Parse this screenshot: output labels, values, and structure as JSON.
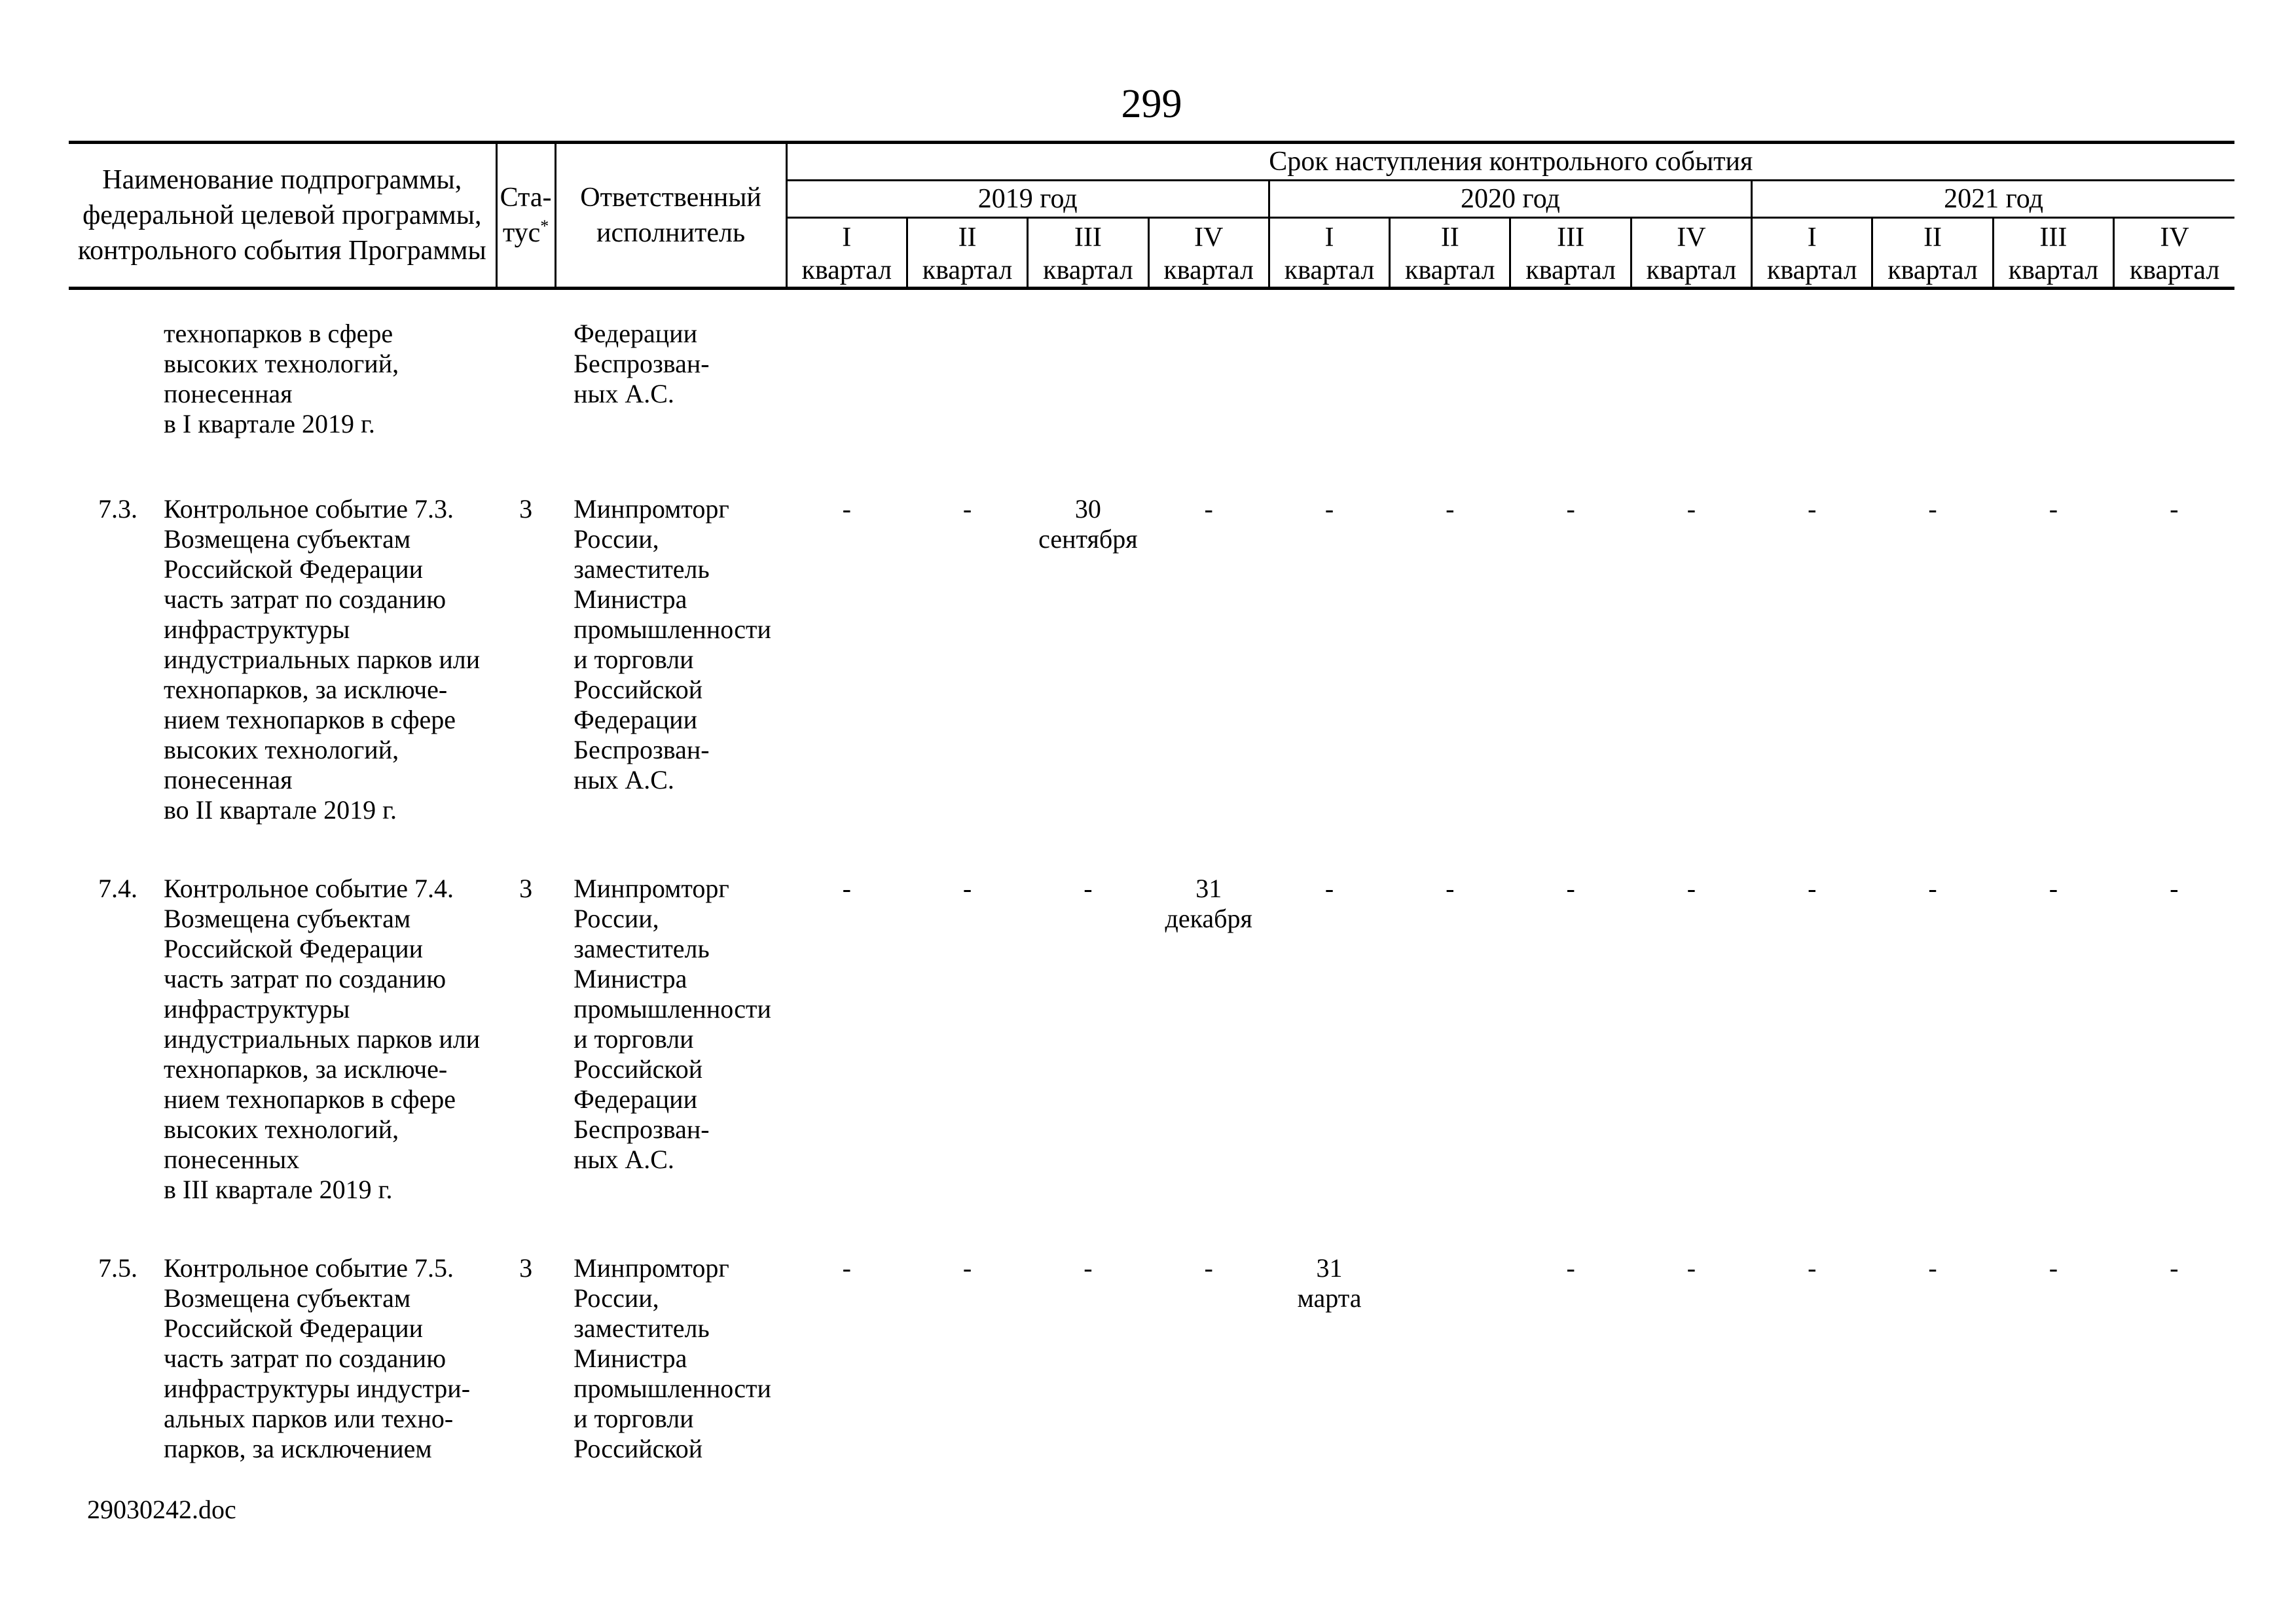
{
  "page": {
    "number": "299",
    "footer": "29030242.doc"
  },
  "header": {
    "name_col_lines": [
      "Наименование подпрограммы,",
      "федеральной целевой программы,",
      "контрольного события Программы"
    ],
    "status_line1": "Ста-",
    "status_line2": "тус",
    "status_superscript": "*",
    "executor_col_lines": [
      "Ответственный",
      "исполнитель"
    ],
    "deadline_title": "Срок наступления контрольного события",
    "years": [
      "2019 год",
      "2020 год",
      "2021 год"
    ],
    "quarter_numerals": [
      "I",
      "II",
      "III",
      "IV"
    ],
    "quarter_word": "квартал"
  },
  "rows": [
    {
      "num": "",
      "status": "",
      "name_lines": [
        "технопарков в сфере",
        "высоких технологий,",
        "понесенная",
        "в I квартале 2019 г."
      ],
      "executor_lines": [
        "Федерации",
        "Беспрозван-",
        "ных А.С."
      ],
      "cells": [
        [],
        [],
        [],
        [],
        [],
        [],
        [],
        [],
        [],
        [],
        [],
        []
      ]
    },
    {
      "num": "7.3.",
      "status": "3",
      "name_lines": [
        "Контрольное событие 7.3.",
        "Возмещена субъектам",
        "Российской Федерации",
        "часть затрат по созданию",
        "инфраструктуры",
        "индустриальных парков или",
        "технопарков, за исключе-",
        "нием технопарков в сфере",
        "высоких технологий,",
        "понесенная",
        "во II квартале 2019 г."
      ],
      "executor_lines": [
        "Минпромторг",
        "России,",
        "заместитель",
        "Министра",
        "промышленности",
        "и торговли",
        "Российской",
        "Федерации",
        "Беспрозван-",
        "ных А.С."
      ],
      "cells": [
        [
          "-"
        ],
        [
          "-"
        ],
        [
          "30",
          "сентября"
        ],
        [
          "-"
        ],
        [
          "-"
        ],
        [
          "-"
        ],
        [
          "-"
        ],
        [
          "-"
        ],
        [
          "-"
        ],
        [
          "-"
        ],
        [
          "-"
        ],
        [
          "-"
        ]
      ]
    },
    {
      "num": "7.4.",
      "status": "3",
      "name_lines": [
        "Контрольное событие 7.4.",
        "Возмещена субъектам",
        "Российской Федерации",
        "часть затрат по созданию",
        "инфраструктуры",
        "индустриальных парков или",
        "технопарков, за исключе-",
        "нием технопарков в сфере",
        "высоких технологий,",
        "понесенных",
        "в III квартале 2019 г."
      ],
      "executor_lines": [
        "Минпромторг",
        "России,",
        "заместитель",
        "Министра",
        "промышленности",
        "и торговли",
        "Российской",
        "Федерации",
        "Беспрозван-",
        "ных А.С."
      ],
      "cells": [
        [
          "-"
        ],
        [
          "-"
        ],
        [
          "-"
        ],
        [
          "31",
          "декабря"
        ],
        [
          "-"
        ],
        [
          "-"
        ],
        [
          "-"
        ],
        [
          "-"
        ],
        [
          "-"
        ],
        [
          "-"
        ],
        [
          "-"
        ],
        [
          "-"
        ]
      ]
    },
    {
      "num": "7.5.",
      "status": "3",
      "name_lines": [
        "Контрольное событие 7.5.",
        "Возмещена субъектам",
        "Российской Федерации",
        "часть затрат по созданию",
        "инфраструктуры индустри-",
        "альных парков или техно-",
        "парков, за исключением"
      ],
      "executor_lines": [
        "Минпромторг",
        "России,",
        "заместитель",
        "Министра",
        "промышленности",
        "и торговли",
        "Российской"
      ],
      "cells": [
        [
          "-"
        ],
        [
          "-"
        ],
        [
          "-"
        ],
        [
          "-"
        ],
        [
          "31",
          "марта"
        ],
        [],
        [
          "-"
        ],
        [
          "-"
        ],
        [
          "-"
        ],
        [
          "-"
        ],
        [
          "-"
        ],
        [
          "-"
        ]
      ]
    }
  ]
}
